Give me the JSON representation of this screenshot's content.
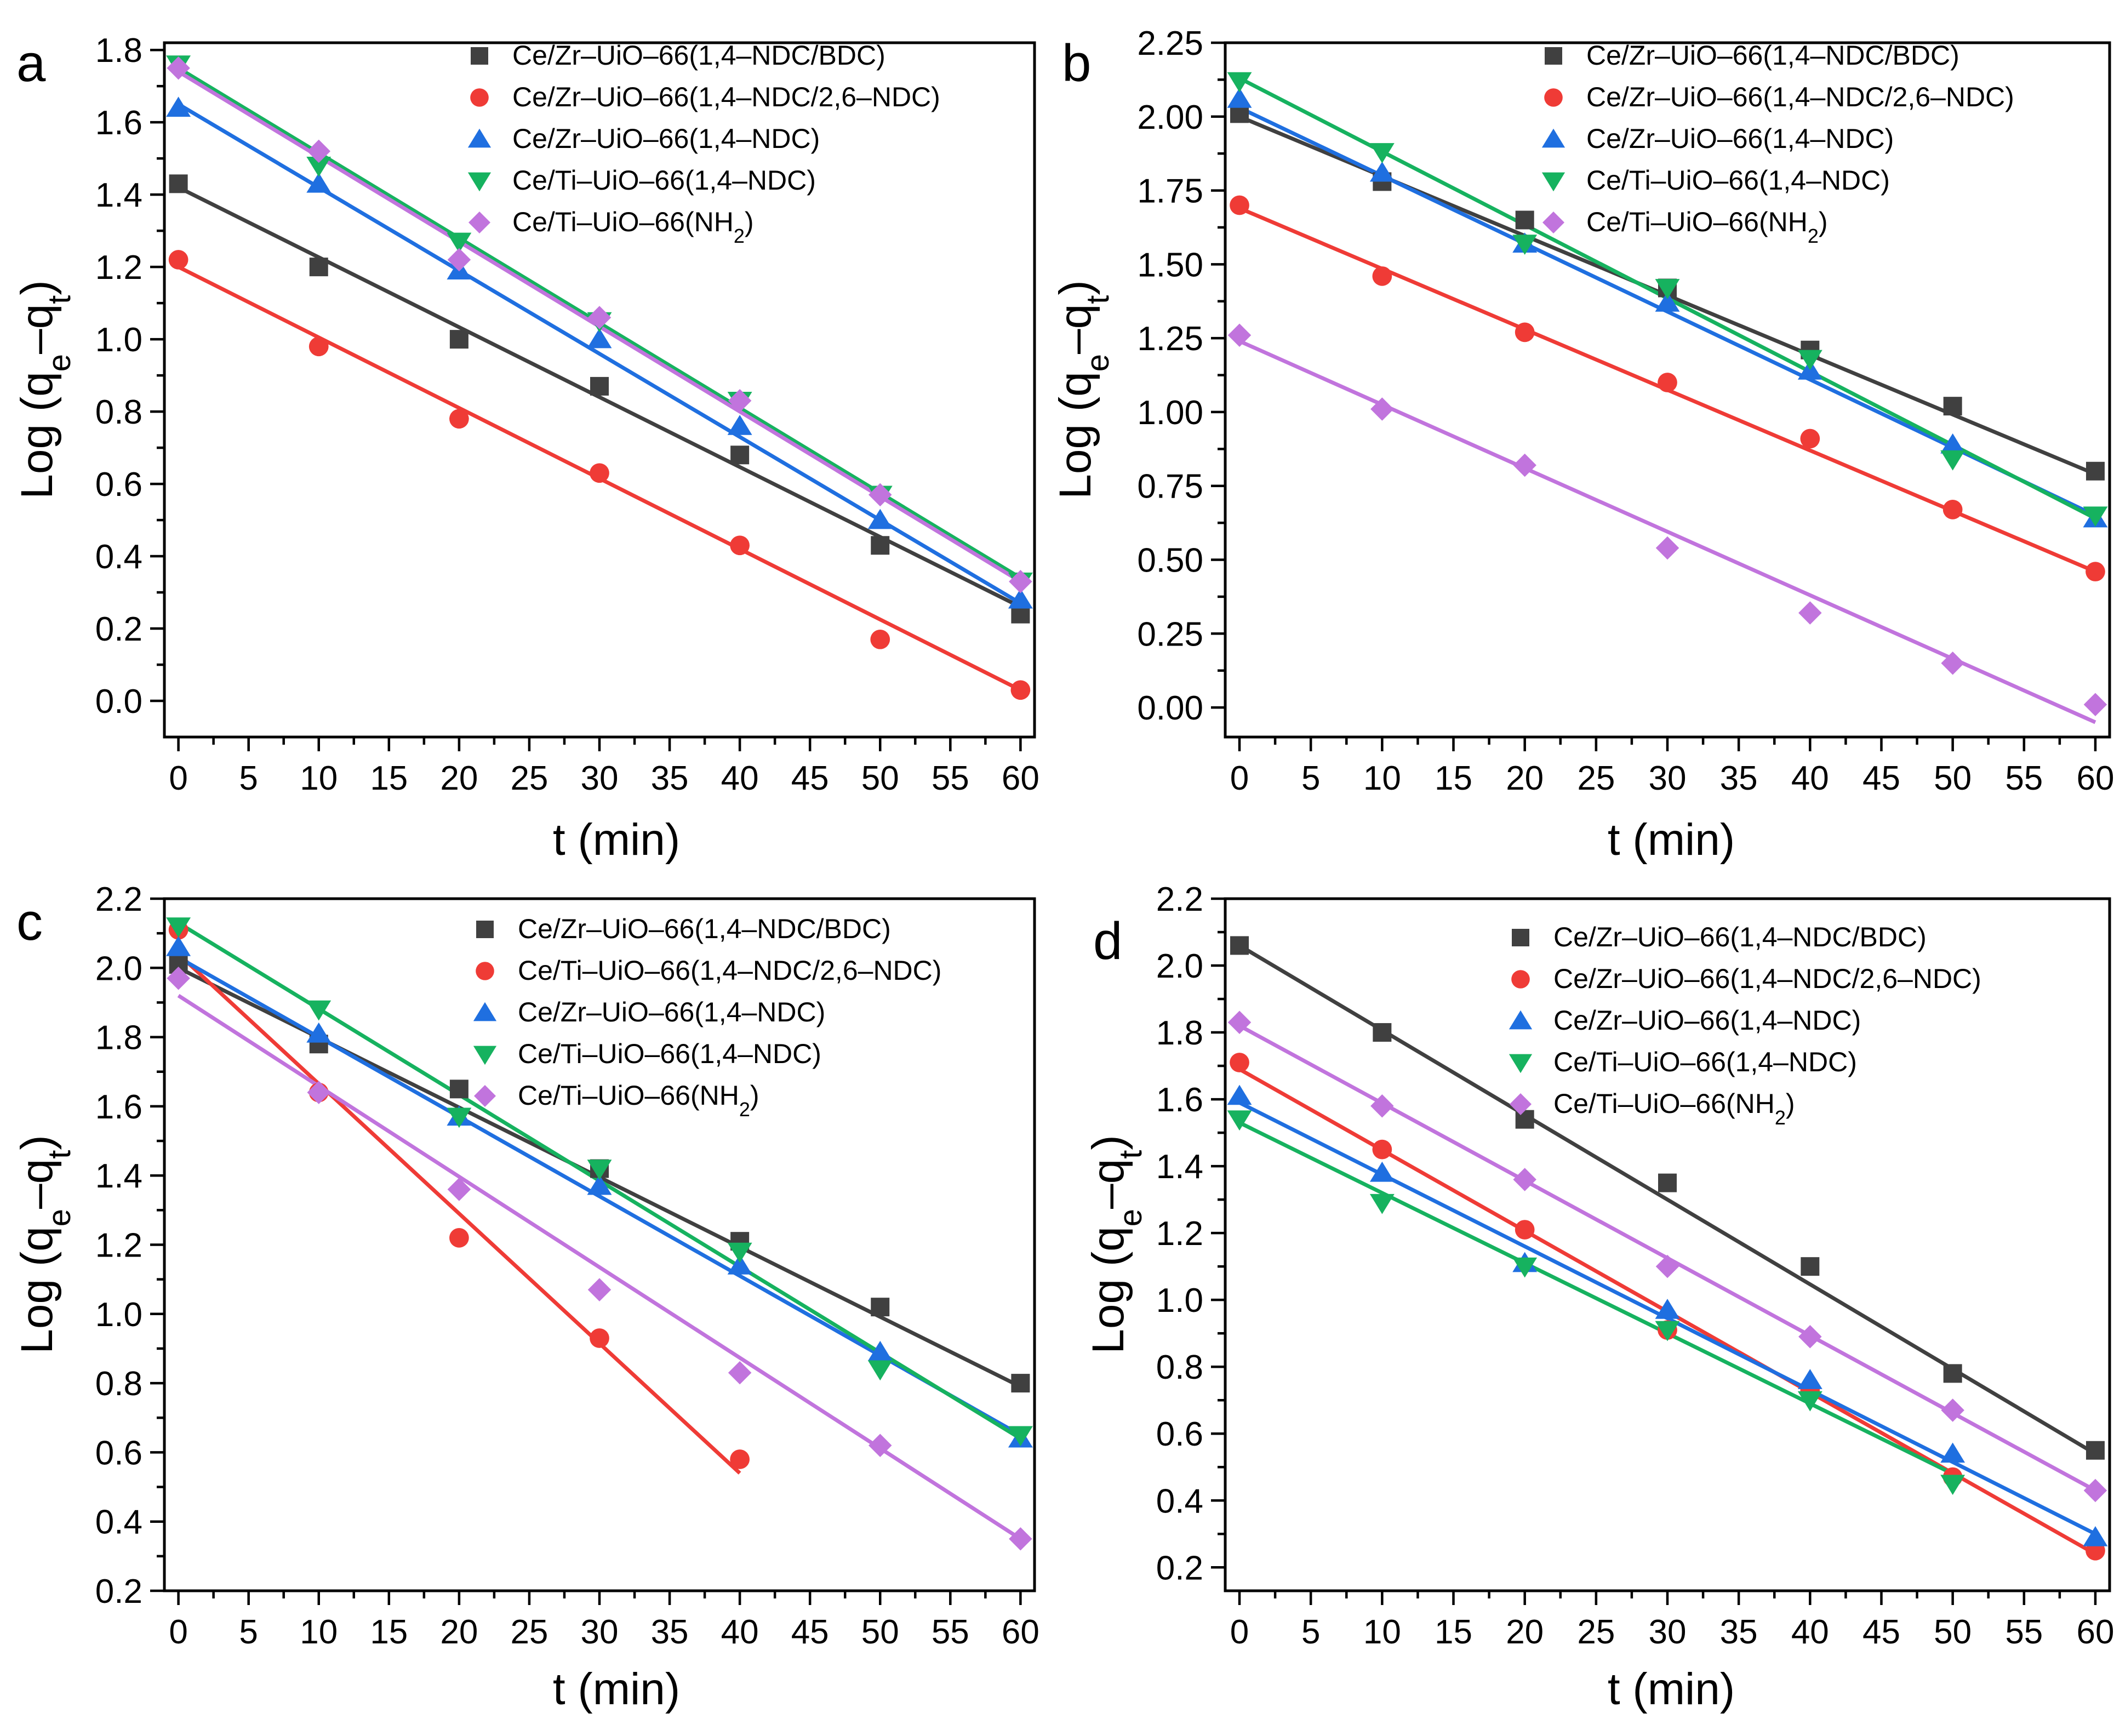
{
  "figure": {
    "colors": {
      "black": "#404040",
      "red": "#ef3b36",
      "blue": "#1f6fe0",
      "green": "#16b25f",
      "purple": "#c174dd"
    }
  },
  "chart_data": [
    {
      "panel_label": "a",
      "type": "scatter",
      "xlabel": "t (min)",
      "ylabel_base": "Log (q",
      "ylabel_sub1": "e",
      "ylabel_mid": "–q",
      "ylabel_sub2": "t",
      "ylabel_end": ")",
      "xlim": [
        -1,
        61
      ],
      "ylim": [
        -0.1,
        1.82
      ],
      "xticks": [
        0,
        5,
        10,
        15,
        20,
        25,
        30,
        35,
        40,
        45,
        50,
        55,
        60
      ],
      "yticks": [
        0.0,
        0.2,
        0.4,
        0.6,
        0.8,
        1.0,
        1.2,
        1.4,
        1.6,
        1.8
      ],
      "ytick_labels": [
        "0.0",
        "0.2",
        "0.4",
        "0.6",
        "0.8",
        "1.0",
        "1.2",
        "1.4",
        "1.6",
        "1.8"
      ],
      "legend_position": "top-right",
      "series": [
        {
          "name": "Ce/Zr–UiO–66(1,4–NDC/BDC)",
          "legend_text": "Ce/Zr–UiO–66(1,4–NDC/BDC)",
          "legend_sub": "",
          "legend_suffix": "",
          "marker": "square",
          "color": "#404040",
          "x": [
            0,
            10,
            20,
            30,
            40,
            50,
            60
          ],
          "y": [
            1.43,
            1.2,
            1.0,
            0.87,
            0.68,
            0.43,
            0.24
          ],
          "fit": [
            1.42,
            0.26
          ]
        },
        {
          "name": "Ce/Zr–UiO–66(1,4–NDC/2,6–NDC)",
          "legend_text": "Ce/Zr–UiO–66(1,4–NDC/2,6–NDC)",
          "legend_sub": "",
          "legend_suffix": "",
          "marker": "circle",
          "color": "#ef3b36",
          "x": [
            0,
            10,
            20,
            30,
            40,
            50,
            60
          ],
          "y": [
            1.22,
            0.98,
            0.78,
            0.63,
            0.43,
            0.17,
            0.03
          ],
          "fit": [
            1.2,
            0.03
          ]
        },
        {
          "name": "Ce/Zr–UiO–66(1,4–NDC)",
          "legend_text": "Ce/Zr–UiO–66(1,4–NDC)",
          "legend_sub": "",
          "legend_suffix": "",
          "marker": "triangle-up",
          "color": "#1f6fe0",
          "x": [
            0,
            10,
            20,
            30,
            40,
            50,
            60
          ],
          "y": [
            1.64,
            1.43,
            1.19,
            1.0,
            0.76,
            0.5,
            0.28
          ],
          "fit": [
            1.65,
            0.27
          ]
        },
        {
          "name": "Ce/Ti–UiO–66(1,4–NDC)",
          "legend_text": "Ce/Ti–UiO–66(1,4–NDC)",
          "legend_sub": "",
          "legend_suffix": "",
          "marker": "triangle-down",
          "color": "#16b25f",
          "x": [
            0,
            10,
            20,
            30,
            40,
            50,
            60
          ],
          "y": [
            1.76,
            1.48,
            1.27,
            1.05,
            0.83,
            0.57,
            0.33
          ],
          "fit": [
            1.75,
            0.34
          ]
        },
        {
          "name": "Ce/Ti–UiO–66(NH2)",
          "legend_text": "Ce/Ti–UiO–66(NH",
          "legend_sub": "2",
          "legend_suffix": ")",
          "marker": "diamond",
          "color": "#c174dd",
          "x": [
            0,
            10,
            20,
            30,
            40,
            50,
            60
          ],
          "y": [
            1.75,
            1.52,
            1.22,
            1.06,
            0.83,
            0.57,
            0.33
          ],
          "fit": [
            1.74,
            0.33
          ]
        }
      ]
    },
    {
      "panel_label": "b",
      "type": "scatter",
      "xlabel": "t (min)",
      "ylabel_base": "Log (q",
      "ylabel_sub1": "e",
      "ylabel_mid": "–q",
      "ylabel_sub2": "t",
      "ylabel_end": ")",
      "xlim": [
        -1,
        61
      ],
      "ylim": [
        -0.1,
        2.25
      ],
      "xticks": [
        0,
        5,
        10,
        15,
        20,
        25,
        30,
        35,
        40,
        45,
        50,
        55,
        60
      ],
      "yticks": [
        0.0,
        0.25,
        0.5,
        0.75,
        1.0,
        1.25,
        1.5,
        1.75,
        2.0,
        2.25
      ],
      "ytick_labels": [
        "0.00",
        "0.25",
        "0.50",
        "0.75",
        "1.00",
        "1.25",
        "1.50",
        "1.75",
        "2.00",
        "2.25"
      ],
      "legend_position": "top-right",
      "series": [
        {
          "name": "Ce/Zr–UiO–66(1,4–NDC/BDC)",
          "legend_text": "Ce/Zr–UiO–66(1,4–NDC/BDC)",
          "legend_sub": "",
          "legend_suffix": "",
          "marker": "square",
          "color": "#404040",
          "x": [
            0,
            10,
            20,
            30,
            40,
            50,
            60
          ],
          "y": [
            2.01,
            1.78,
            1.65,
            1.42,
            1.21,
            1.02,
            0.8
          ],
          "fit": [
            2.0,
            0.79
          ]
        },
        {
          "name": "Ce/Zr–UiO–66(1,4–NDC/2,6–NDC)",
          "legend_text": "Ce/Zr–UiO–66(1,4–NDC/2,6–NDC)",
          "legend_sub": "",
          "legend_suffix": "",
          "marker": "circle",
          "color": "#ef3b36",
          "x": [
            0,
            10,
            20,
            30,
            40,
            50,
            60
          ],
          "y": [
            1.7,
            1.46,
            1.27,
            1.1,
            0.91,
            0.67,
            0.46
          ],
          "fit": [
            1.69,
            0.46
          ]
        },
        {
          "name": "Ce/Zr–UiO–66(1,4–NDC)",
          "legend_text": "Ce/Zr–UiO–66(1,4–NDC)",
          "legend_sub": "",
          "legend_suffix": "",
          "marker": "triangle-up",
          "color": "#1f6fe0",
          "x": [
            0,
            10,
            20,
            30,
            40,
            50,
            60
          ],
          "y": [
            2.06,
            1.81,
            1.57,
            1.37,
            1.14,
            0.89,
            0.64
          ],
          "fit": [
            2.03,
            0.65
          ]
        },
        {
          "name": "Ce/Ti–UiO–66(1,4–NDC)",
          "legend_text": "Ce/Ti–UiO–66(1,4–NDC)",
          "legend_sub": "",
          "legend_suffix": "",
          "marker": "triangle-down",
          "color": "#16b25f",
          "x": [
            0,
            10,
            20,
            30,
            40,
            50,
            60
          ],
          "y": [
            2.12,
            1.88,
            1.57,
            1.42,
            1.18,
            0.84,
            0.65
          ],
          "fit": [
            2.13,
            0.64
          ]
        },
        {
          "name": "Ce/Ti–UiO–66(NH2)",
          "legend_text": "Ce/Ti–UiO–66(NH",
          "legend_sub": "2",
          "legend_suffix": ")",
          "marker": "diamond",
          "color": "#c174dd",
          "x": [
            0,
            10,
            20,
            30,
            40,
            50,
            60
          ],
          "y": [
            1.26,
            1.01,
            0.82,
            0.54,
            0.32,
            0.15,
            0.01
          ],
          "fit": [
            1.24,
            -0.05
          ]
        }
      ]
    },
    {
      "panel_label": "c",
      "type": "scatter",
      "xlabel": "t (min)",
      "ylabel_base": "Log (q",
      "ylabel_sub1": "e",
      "ylabel_mid": "–q",
      "ylabel_sub2": "t",
      "ylabel_end": ")",
      "xlim": [
        -1,
        61
      ],
      "ylim": [
        0.2,
        2.2
      ],
      "xticks": [
        0,
        5,
        10,
        15,
        20,
        25,
        30,
        35,
        40,
        45,
        50,
        55,
        60
      ],
      "yticks": [
        0.2,
        0.4,
        0.6,
        0.8,
        1.0,
        1.2,
        1.4,
        1.6,
        1.8,
        2.0,
        2.2
      ],
      "ytick_labels": [
        "0.2",
        "0.4",
        "0.6",
        "0.8",
        "1.0",
        "1.2",
        "1.4",
        "1.6",
        "1.8",
        "2.0",
        "2.2"
      ],
      "legend_position": "top-right",
      "series": [
        {
          "name": "Ce/Zr–UiO–66(1,4–NDC/BDC)",
          "legend_text": "Ce/Zr–UiO–66(1,4–NDC/BDC)",
          "legend_sub": "",
          "legend_suffix": "",
          "marker": "square",
          "color": "#404040",
          "x": [
            0,
            10,
            20,
            30,
            40,
            50,
            60
          ],
          "y": [
            2.01,
            1.78,
            1.65,
            1.42,
            1.21,
            1.02,
            0.8
          ],
          "fit": [
            2.0,
            0.79
          ]
        },
        {
          "name": "Ce/Ti–UiO–66(1,4–NDC/2,6–NDC)",
          "legend_text": "Ce/Ti–UiO–66(1,4–NDC/2,6–NDC)",
          "legend_sub": "",
          "legend_suffix": "",
          "marker": "circle",
          "color": "#ef3b36",
          "x": [
            0,
            10,
            20,
            30,
            40
          ],
          "y": [
            2.11,
            1.64,
            1.22,
            0.93,
            0.58
          ],
          "fit": [
            2.04,
            0.54
          ],
          "fit_x_end": 40
        },
        {
          "name": "Ce/Zr–UiO–66(1,4–NDC)",
          "legend_text": "Ce/Zr–UiO–66(1,4–NDC)",
          "legend_sub": "",
          "legend_suffix": "",
          "marker": "triangle-up",
          "color": "#1f6fe0",
          "x": [
            0,
            10,
            20,
            30,
            40,
            50,
            60
          ],
          "y": [
            2.06,
            1.81,
            1.57,
            1.37,
            1.14,
            0.89,
            0.64
          ],
          "fit": [
            2.03,
            0.65
          ]
        },
        {
          "name": "Ce/Ti–UiO–66(1,4–NDC)",
          "legend_text": "Ce/Ti–UiO–66(1,4–NDC)",
          "legend_sub": "",
          "legend_suffix": "",
          "marker": "triangle-down",
          "color": "#16b25f",
          "x": [
            0,
            10,
            20,
            30,
            40,
            50,
            60
          ],
          "y": [
            2.12,
            1.88,
            1.57,
            1.42,
            1.18,
            0.84,
            0.65
          ],
          "fit": [
            2.13,
            0.64
          ]
        },
        {
          "name": "Ce/Ti–UiO–66(NH2)",
          "legend_text": "Ce/Ti–UiO–66(NH",
          "legend_sub": "2",
          "legend_suffix": ")",
          "marker": "diamond",
          "color": "#c174dd",
          "x": [
            0,
            10,
            20,
            30,
            40,
            50,
            60
          ],
          "y": [
            1.97,
            1.64,
            1.36,
            1.07,
            0.83,
            0.62,
            0.35
          ],
          "fit": [
            1.92,
            0.35
          ]
        }
      ]
    },
    {
      "panel_label": "d",
      "type": "scatter",
      "xlabel": "t (min)",
      "ylabel_base": "Log (q",
      "ylabel_sub1": "e",
      "ylabel_mid": "–q",
      "ylabel_sub2": "t",
      "ylabel_end": ")",
      "xlim": [
        -1,
        61
      ],
      "ylim": [
        0.13,
        2.2
      ],
      "xticks": [
        0,
        5,
        10,
        15,
        20,
        25,
        30,
        35,
        40,
        45,
        50,
        55,
        60
      ],
      "yticks": [
        0.2,
        0.4,
        0.6,
        0.8,
        1.0,
        1.2,
        1.4,
        1.6,
        1.8,
        2.0,
        2.2
      ],
      "ytick_labels": [
        "0.2",
        "0.4",
        "0.6",
        "0.8",
        "1.0",
        "1.2",
        "1.4",
        "1.6",
        "1.8",
        "2.0",
        "2.2"
      ],
      "legend_position": "top-right",
      "series": [
        {
          "name": "Ce/Zr–UiO–66(1,4–NDC/BDC)",
          "legend_text": "Ce/Zr–UiO–66(1,4–NDC/BDC)",
          "legend_sub": "",
          "legend_suffix": "",
          "marker": "square",
          "color": "#404040",
          "x": [
            0,
            10,
            20,
            30,
            40,
            50,
            60
          ],
          "y": [
            2.06,
            1.8,
            1.54,
            1.35,
            1.1,
            0.78,
            0.55
          ],
          "fit": [
            2.06,
            0.54
          ]
        },
        {
          "name": "Ce/Zr–UiO–66(1,4–NDC/2,6–NDC)",
          "legend_text": "Ce/Zr–UiO–66(1,4–NDC/2,6–NDC)",
          "legend_sub": "",
          "legend_suffix": "",
          "marker": "circle",
          "color": "#ef3b36",
          "x": [
            0,
            10,
            20,
            30,
            40,
            50,
            60
          ],
          "y": [
            1.71,
            1.45,
            1.21,
            0.91,
            0.73,
            0.47,
            0.25
          ],
          "fit": [
            1.69,
            0.24
          ]
        },
        {
          "name": "Ce/Zr–UiO–66(1,4–NDC)",
          "legend_text": "Ce/Zr–UiO–66(1,4–NDC)",
          "legend_sub": "",
          "legend_suffix": "",
          "marker": "triangle-up",
          "color": "#1f6fe0",
          "x": [
            0,
            10,
            20,
            30,
            40,
            50,
            60
          ],
          "y": [
            1.61,
            1.38,
            1.11,
            0.97,
            0.76,
            0.54,
            0.29
          ],
          "fit": [
            1.59,
            0.3
          ]
        },
        {
          "name": "Ce/Ti–UiO–66(1,4–NDC)",
          "legend_text": "Ce/Ti–UiO–66(1,4–NDC)",
          "legend_sub": "",
          "legend_suffix": "",
          "marker": "triangle-down",
          "color": "#16b25f",
          "x": [
            0,
            10,
            20,
            30,
            40,
            50
          ],
          "y": [
            1.54,
            1.29,
            1.1,
            0.91,
            0.7,
            0.45
          ],
          "fit": [
            1.53,
            0.48
          ],
          "fit_x_end": 50
        },
        {
          "name": "Ce/Ti–UiO–66(NH2)",
          "legend_text": "Ce/Ti–UiO–66(NH",
          "legend_sub": "2",
          "legend_suffix": ")",
          "marker": "diamond",
          "color": "#c174dd",
          "x": [
            0,
            10,
            20,
            30,
            40,
            50,
            60
          ],
          "y": [
            1.83,
            1.58,
            1.36,
            1.1,
            0.89,
            0.67,
            0.43
          ],
          "fit": [
            1.82,
            0.43
          ]
        }
      ]
    }
  ]
}
